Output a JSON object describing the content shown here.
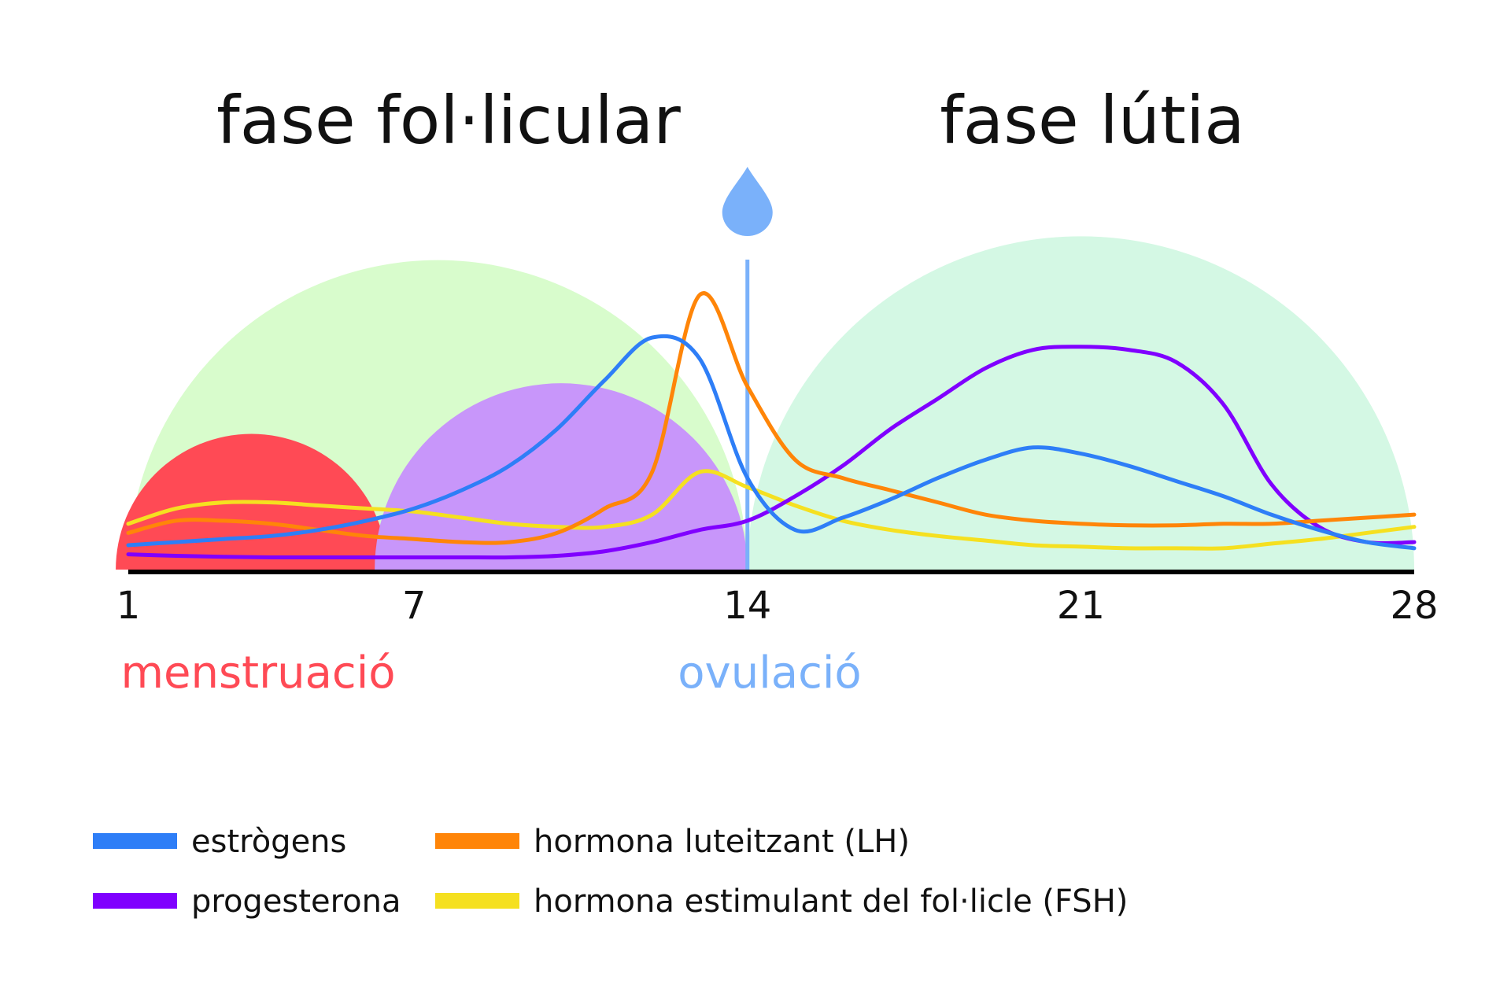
{
  "chart_data": {
    "type": "line",
    "phases": [
      {
        "label": "fase fol·licular",
        "from": 1,
        "to": 14,
        "color": "#d8fccc"
      },
      {
        "label": "fase lútia",
        "from": 14,
        "to": 28,
        "color": "#d4f8e4"
      }
    ],
    "x_ticks": [
      "1",
      "7",
      "14",
      "21",
      "28"
    ],
    "xlim": [
      1,
      28
    ],
    "ylim": [
      0,
      100
    ],
    "grid": false,
    "periods": [
      {
        "label": "menstruació",
        "from": 1,
        "to": 7,
        "color": "#ff4a55"
      },
      {
        "label": "ovulació",
        "day": 14,
        "color": "#7ab1fa"
      }
    ],
    "follicle_region": {
      "from": 7,
      "to": 14,
      "color": "#c896fa"
    },
    "x": [
      1,
      2,
      3,
      4,
      5,
      6,
      7,
      8,
      9,
      10,
      11,
      12,
      13,
      14,
      15,
      16,
      17,
      18,
      19,
      20,
      21,
      22,
      23,
      24,
      25,
      26,
      27,
      28
    ],
    "series": [
      {
        "name": "estrògens",
        "color": "#2e7ef7",
        "values": [
          8,
          9,
          10,
          11,
          13,
          16,
          20,
          26,
          34,
          46,
          62,
          76,
          69,
          30,
          13,
          17,
          23,
          30,
          36,
          40,
          38,
          34,
          29,
          24,
          18,
          13,
          9,
          7
        ]
      },
      {
        "name": "progesterona",
        "color": "#8000ff",
        "values": [
          5,
          4.5,
          4.2,
          4,
          4,
          4,
          4,
          4,
          4,
          4.5,
          6,
          9,
          13,
          16,
          24,
          34,
          46,
          56,
          66,
          72,
          73,
          72,
          68,
          54,
          28,
          14,
          9,
          9
        ]
      },
      {
        "name": "hormona luteitzant (LH)",
        "color": "#ff8508",
        "values": [
          12,
          16,
          16,
          15,
          13,
          11,
          10,
          9,
          9,
          12,
          20,
          32,
          90,
          60,
          36,
          30,
          26,
          22,
          18,
          16,
          15,
          14.5,
          14.5,
          15,
          15,
          16,
          17,
          18
        ]
      },
      {
        "name": "hormona estimulant del fol·licle (FSH)",
        "color": "#f5e020",
        "values": [
          15,
          20,
          22,
          22,
          21,
          20,
          19,
          17,
          15,
          14,
          14,
          18,
          32,
          27,
          21,
          16,
          13,
          11,
          9.5,
          8,
          7.5,
          7,
          7,
          7,
          8.5,
          10,
          12,
          14
        ]
      }
    ],
    "legend_position": "bottom"
  }
}
